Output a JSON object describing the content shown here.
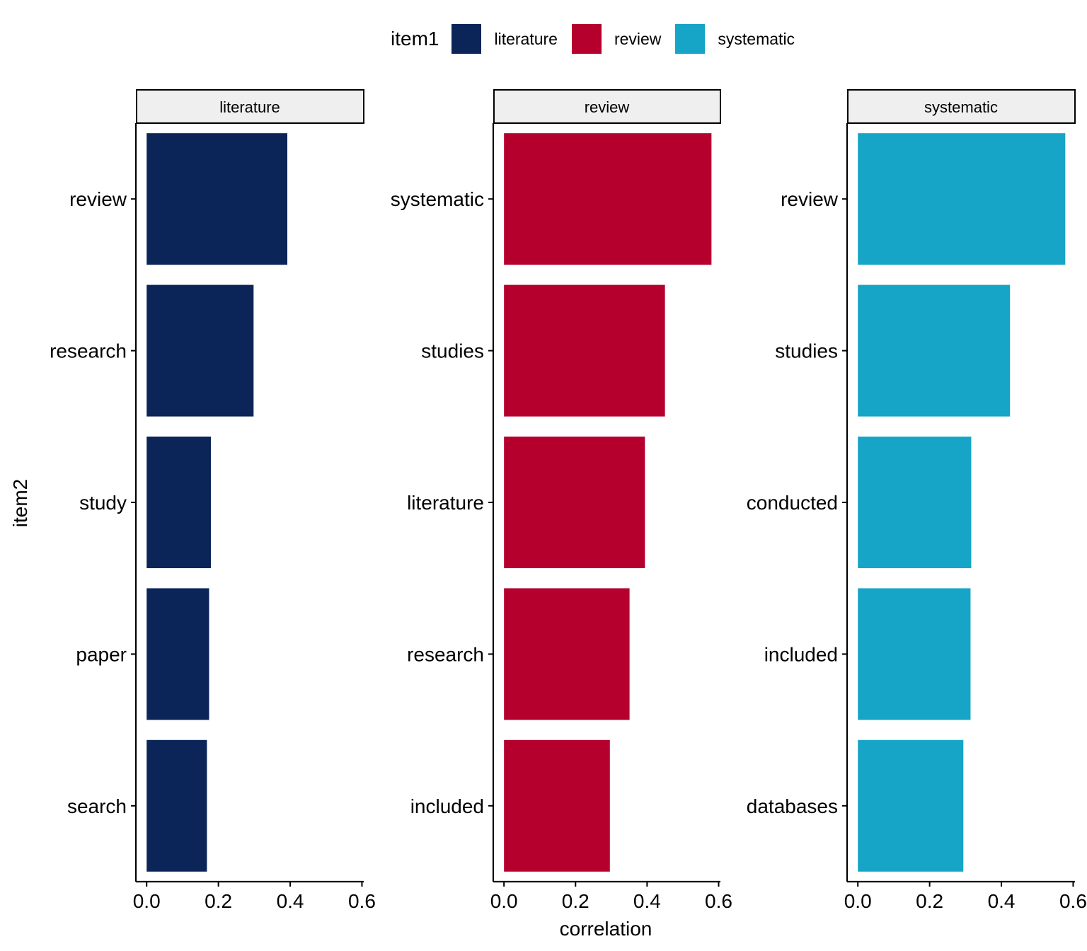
{
  "chart_data": {
    "type": "bar",
    "orientation": "horizontal",
    "facet_by": "item1",
    "xlabel": "correlation",
    "ylabel": "item2",
    "xlim": [
      0,
      0.6
    ],
    "xticks": [
      "0.0",
      "0.2",
      "0.4",
      "0.6"
    ],
    "legend": {
      "title": "item1",
      "placement": "top",
      "entries": [
        {
          "label": "literature",
          "color": "#0B2559"
        },
        {
          "label": "review",
          "color": "#B5002E"
        },
        {
          "label": "systematic",
          "color": "#17A5C7"
        }
      ]
    },
    "facets": [
      {
        "title": "literature",
        "color": "#0B2559",
        "categories": [
          "review",
          "research",
          "study",
          "paper",
          "search"
        ],
        "values": [
          0.392,
          0.298,
          0.179,
          0.174,
          0.168
        ]
      },
      {
        "title": "review",
        "color": "#B5002E",
        "categories": [
          "systematic",
          "studies",
          "literature",
          "research",
          "included"
        ],
        "values": [
          0.58,
          0.45,
          0.394,
          0.351,
          0.296
        ]
      },
      {
        "title": "systematic",
        "color": "#17A5C7",
        "categories": [
          "review",
          "studies",
          "conducted",
          "included",
          "databases"
        ],
        "values": [
          0.578,
          0.424,
          0.316,
          0.314,
          0.294
        ]
      }
    ]
  }
}
